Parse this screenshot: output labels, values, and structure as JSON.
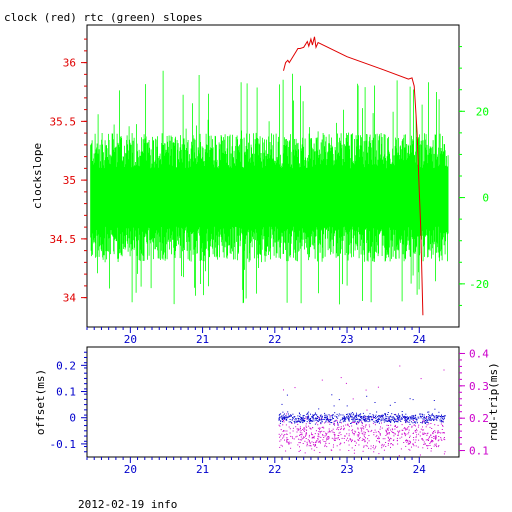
{
  "title": "clock (red) rtc (green) slopes",
  "footer": "2012-02-19 info",
  "colors": {
    "red": "#e00000",
    "green": "#00ff00",
    "blue": "#0000cc",
    "magenta": "#cc00cc",
    "black": "#000000"
  },
  "chart_data": [
    {
      "type": "line",
      "ylabel": "clockslope",
      "y2label": "",
      "xlim": [
        19.4,
        24.55
      ],
      "ylim": [
        33.75,
        36.32
      ],
      "y2lim": [
        -30,
        40
      ],
      "xticks": [
        20,
        21,
        22,
        23,
        24
      ],
      "xtick_labels": [
        "20",
        "21",
        "22",
        "23",
        "24"
      ],
      "yticks": [
        34,
        34.5,
        35,
        35.5,
        36
      ],
      "ytick_labels": [
        "34",
        "34.5",
        "35",
        "35.5",
        "36"
      ],
      "y2ticks": [
        -20,
        0,
        20
      ],
      "y2tick_labels": [
        "-20",
        "0",
        "20"
      ],
      "series": [
        {
          "name": "clock",
          "color": "#e00000",
          "axis": "left",
          "x": [
            22.12,
            22.15,
            22.18,
            22.2,
            22.3,
            22.32,
            22.35,
            22.4,
            22.45,
            22.47,
            22.5,
            22.52,
            22.55,
            22.57,
            22.6,
            23.0,
            23.5,
            23.85,
            23.9,
            23.93,
            23.95,
            23.97,
            24.0,
            24.02,
            24.05
          ],
          "values": [
            35.93,
            36.0,
            36.02,
            36.0,
            36.1,
            36.12,
            36.12,
            36.13,
            36.18,
            36.14,
            36.2,
            36.15,
            36.22,
            36.13,
            36.17,
            36.05,
            35.94,
            35.86,
            35.87,
            35.8,
            35.6,
            35.4,
            34.9,
            34.6,
            33.85
          ]
        },
        {
          "name": "rtc",
          "color": "#00ff00",
          "axis": "right",
          "x_range": [
            19.45,
            24.4
          ],
          "center": 0,
          "typical_range": [
            -15,
            15
          ],
          "extreme_range": [
            -25,
            30
          ]
        }
      ]
    },
    {
      "type": "scatter",
      "ylabel": "offset(ms)",
      "y2label": "rnd-trip(ms)",
      "xlim": [
        19.4,
        24.55
      ],
      "ylim": [
        -0.15,
        0.27
      ],
      "y2lim": [
        0.08,
        0.42
      ],
      "xticks": [
        20,
        21,
        22,
        23,
        24
      ],
      "xtick_labels": [
        "20",
        "21",
        "22",
        "23",
        "24"
      ],
      "yticks": [
        -0.1,
        0,
        0.1,
        0.2
      ],
      "ytick_labels": [
        "-0.1",
        "0",
        "0.1",
        "0.2"
      ],
      "y2ticks": [
        0.1,
        0.2,
        0.3,
        0.4
      ],
      "y2tick_labels": [
        "0.1",
        "0.2",
        "0.3",
        "0.4"
      ],
      "series": [
        {
          "name": "offset",
          "color": "#0000cc",
          "axis": "left",
          "x_range": [
            22.05,
            24.35
          ],
          "center": 0,
          "spread": 0.012
        },
        {
          "name": "rnd-trip",
          "color": "#cc00cc",
          "axis": "right",
          "x_range": [
            22.05,
            24.35
          ],
          "center": 0.15,
          "spread": 0.03
        }
      ]
    }
  ]
}
